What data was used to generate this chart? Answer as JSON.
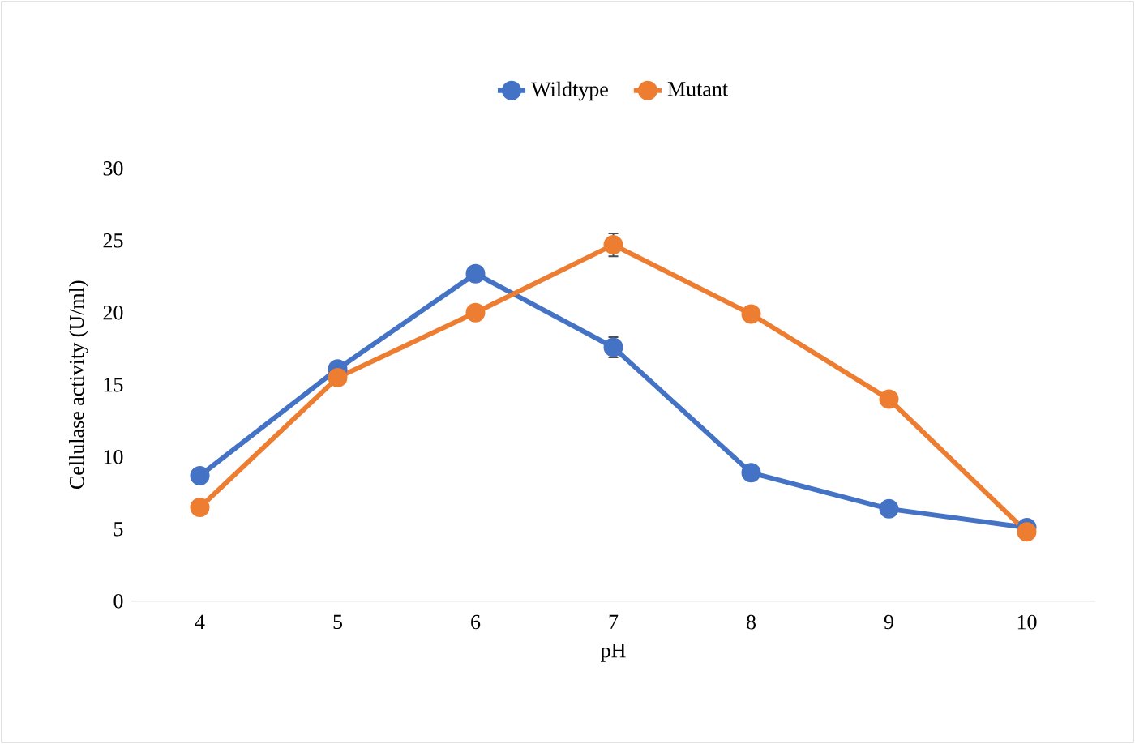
{
  "chart_data": {
    "type": "line",
    "xlabel": "pH",
    "ylabel": "Cellulase activity (U/ml)",
    "categories": [
      "4",
      "5",
      "6",
      "7",
      "8",
      "9",
      "10"
    ],
    "series": [
      {
        "name": "Wildtype",
        "color": "#4472c4",
        "values": [
          8.7,
          16.1,
          22.7,
          17.6,
          8.9,
          6.4,
          5.1
        ],
        "errors": [
          null,
          null,
          null,
          0.7,
          null,
          null,
          null
        ]
      },
      {
        "name": "Mutant",
        "color": "#ed7d31",
        "values": [
          6.5,
          15.5,
          20.0,
          24.7,
          19.9,
          14.0,
          4.8
        ],
        "errors": [
          null,
          null,
          null,
          0.8,
          null,
          null,
          null
        ]
      }
    ],
    "ylim": [
      0,
      30
    ],
    "yticks": [
      0,
      5,
      10,
      15,
      20,
      25,
      30
    ],
    "grid": false,
    "legend": "top",
    "marker": "circle",
    "line_style": "solid"
  }
}
